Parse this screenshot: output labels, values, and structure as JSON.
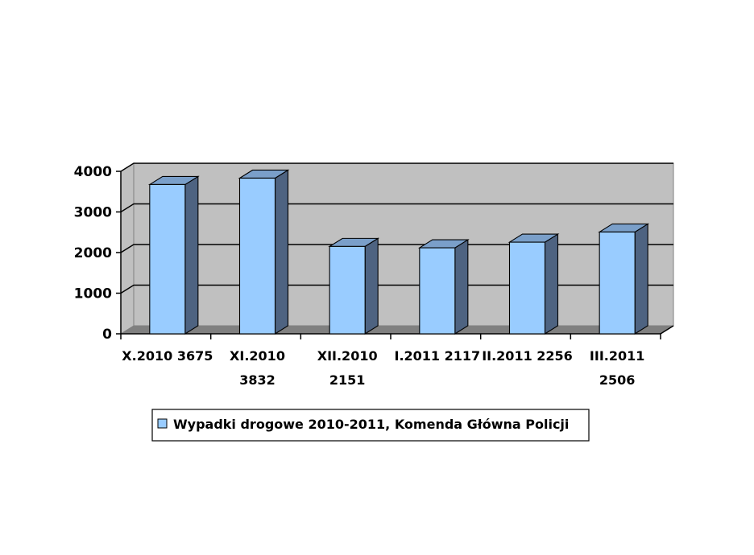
{
  "chart_data": {
    "type": "bar",
    "style": "3d-column",
    "title": "",
    "xlabel": "",
    "ylabel": "",
    "ylim": [
      0,
      4000
    ],
    "yticks": [
      0,
      1000,
      2000,
      3000,
      4000
    ],
    "grid": true,
    "categories": [
      [
        "X.2010 3675"
      ],
      [
        "XI.2010",
        "3832"
      ],
      [
        "XII.2010",
        "2151"
      ],
      [
        "I.2011 2117"
      ],
      [
        "II.2011 2256"
      ],
      [
        "III.2011",
        "2506"
      ]
    ],
    "series": [
      {
        "name": "Wypadki drogowe 2010-2011, Komenda Główna Policji",
        "values": [
          3675,
          3832,
          2151,
          2117,
          2256,
          2506
        ]
      }
    ],
    "legend_position": "bottom"
  },
  "colors": {
    "bar_front": "#99CCFF",
    "bar_top": "#7A9FC9",
    "bar_side": "#4E6381",
    "plot_wall": "#C0C0C0",
    "plot_floor": "#808080",
    "gridline": "#000000"
  }
}
